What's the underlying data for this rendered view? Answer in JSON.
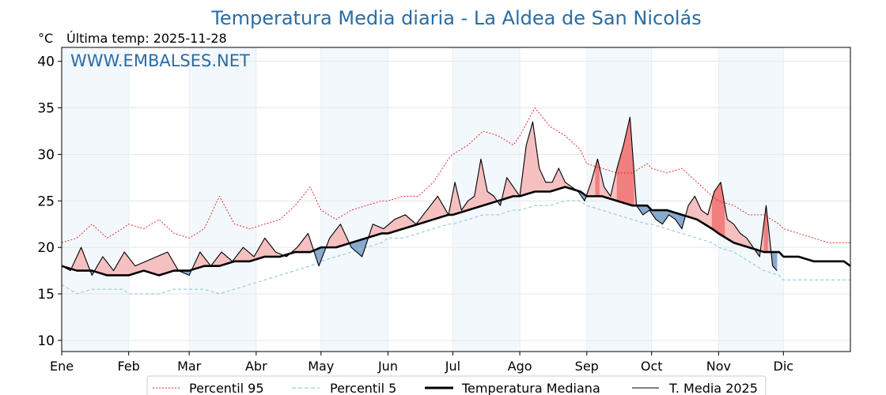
{
  "chart_data": {
    "type": "line",
    "title": "Temperatura Media diaria - La Aldea de San Nicolás",
    "ylabel": "°C",
    "subtitle": "Última temp: 2025-11-28",
    "watermark": "WWW.EMBALSES.NET",
    "ylim": [
      8.8,
      41.5
    ],
    "yticks": [
      10,
      15,
      20,
      25,
      30,
      35,
      40
    ],
    "xlim": [
      1,
      366
    ],
    "months": [
      "Ene",
      "Feb",
      "Mar",
      "Abr",
      "May",
      "Jun",
      "Jul",
      "Ago",
      "Sep",
      "Oct",
      "Nov",
      "Dic"
    ],
    "month_start_days": [
      1,
      32,
      60,
      91,
      121,
      152,
      182,
      213,
      244,
      274,
      305,
      335
    ],
    "shaded_months": [
      0,
      2,
      4,
      6,
      8,
      10
    ],
    "grid": true,
    "legend_position": "bottom-center",
    "series": [
      {
        "name": "Percentil 95",
        "color": "#e41a1c",
        "style": "dotted",
        "x": [
          1,
          8,
          15,
          22,
          29,
          32,
          39,
          46,
          53,
          60,
          67,
          74,
          81,
          88,
          95,
          102,
          109,
          116,
          121,
          128,
          135,
          142,
          149,
          152,
          159,
          166,
          173,
          180,
          182,
          189,
          196,
          203,
          210,
          213,
          220,
          227,
          234,
          241,
          244,
          251,
          258,
          265,
          272,
          274,
          281,
          288,
          295,
          302,
          305,
          312,
          319,
          326,
          333,
          335,
          342,
          349,
          356,
          363,
          366
        ],
        "values": [
          20.5,
          21.0,
          22.5,
          21.0,
          22.0,
          22.5,
          22.0,
          23.0,
          21.5,
          21.0,
          22.0,
          25.5,
          22.5,
          22.0,
          22.5,
          23.0,
          24.5,
          26.5,
          24.0,
          23.0,
          24.0,
          24.5,
          25.0,
          25.0,
          25.5,
          25.5,
          27.0,
          29.5,
          30.0,
          31.0,
          32.5,
          32.0,
          31.0,
          32.0,
          35.0,
          33.0,
          32.0,
          30.5,
          29.0,
          28.5,
          28.0,
          28.0,
          29.0,
          28.5,
          28.0,
          28.5,
          27.0,
          25.5,
          25.0,
          24.5,
          23.5,
          23.5,
          22.5,
          22.0,
          21.5,
          21.0,
          20.5,
          20.5,
          20.5
        ]
      },
      {
        "name": "Percentil 5",
        "color": "#9ecae1",
        "style": "dashed",
        "x": [
          1,
          8,
          15,
          22,
          29,
          32,
          39,
          46,
          53,
          60,
          67,
          74,
          81,
          88,
          95,
          102,
          109,
          116,
          121,
          128,
          135,
          142,
          149,
          152,
          159,
          166,
          173,
          180,
          182,
          189,
          196,
          203,
          210,
          213,
          220,
          227,
          234,
          241,
          244,
          251,
          258,
          265,
          272,
          274,
          281,
          288,
          295,
          302,
          305,
          312,
          319,
          326,
          333,
          335,
          342,
          349,
          356,
          363,
          366
        ],
        "values": [
          16.0,
          15.0,
          15.5,
          15.5,
          15.5,
          15.0,
          15.0,
          15.0,
          15.5,
          15.5,
          15.5,
          15.0,
          15.5,
          16.0,
          16.5,
          17.0,
          17.5,
          18.0,
          18.5,
          19.0,
          19.5,
          20.0,
          20.5,
          21.0,
          21.0,
          21.5,
          22.0,
          22.5,
          22.5,
          23.0,
          23.5,
          23.5,
          24.0,
          24.0,
          24.5,
          24.5,
          25.0,
          25.0,
          24.5,
          24.0,
          23.5,
          23.0,
          22.5,
          22.5,
          22.0,
          21.5,
          21.0,
          20.5,
          20.0,
          19.5,
          18.5,
          17.5,
          17.0,
          16.5,
          16.5,
          16.5,
          16.5,
          16.5,
          16.5
        ]
      },
      {
        "name": "Temperatura Mediana",
        "color": "#000000",
        "style": "solid-thick",
        "x": [
          1,
          8,
          15,
          22,
          29,
          32,
          39,
          46,
          53,
          60,
          67,
          74,
          81,
          88,
          95,
          102,
          109,
          116,
          121,
          128,
          135,
          142,
          149,
          152,
          159,
          166,
          173,
          180,
          182,
          189,
          196,
          203,
          210,
          213,
          220,
          227,
          234,
          241,
          244,
          251,
          258,
          265,
          272,
          274,
          281,
          288,
          295,
          302,
          305,
          312,
          319,
          326,
          333,
          335,
          342,
          349,
          356,
          363,
          366
        ],
        "values": [
          18.0,
          17.5,
          17.5,
          17.0,
          17.0,
          17.0,
          17.5,
          17.0,
          17.5,
          17.5,
          18.0,
          18.0,
          18.5,
          18.5,
          19.0,
          19.0,
          19.5,
          19.5,
          20.0,
          20.0,
          20.5,
          21.0,
          21.5,
          21.5,
          22.0,
          22.5,
          23.0,
          23.5,
          23.5,
          24.0,
          24.5,
          25.0,
          25.5,
          25.5,
          26.0,
          26.0,
          26.5,
          26.0,
          25.5,
          25.5,
          25.0,
          24.5,
          24.5,
          24.0,
          24.0,
          23.5,
          23.0,
          22.0,
          21.5,
          20.5,
          20.0,
          19.5,
          19.5,
          19.0,
          19.0,
          18.5,
          18.5,
          18.5,
          18.0
        ]
      },
      {
        "name": "T. Media 2025",
        "color": "#000000",
        "style": "solid-thin",
        "x": [
          1,
          5,
          10,
          15,
          20,
          25,
          30,
          35,
          40,
          45,
          50,
          55,
          60,
          65,
          70,
          75,
          80,
          85,
          90,
          95,
          100,
          105,
          110,
          115,
          120,
          125,
          130,
          135,
          140,
          145,
          150,
          155,
          160,
          165,
          170,
          175,
          180,
          183,
          186,
          189,
          192,
          195,
          198,
          201,
          204,
          207,
          210,
          213,
          216,
          219,
          222,
          225,
          228,
          231,
          234,
          237,
          240,
          243,
          246,
          249,
          252,
          255,
          258,
          261,
          264,
          267,
          270,
          273,
          276,
          279,
          282,
          285,
          288,
          291,
          294,
          297,
          300,
          303,
          306,
          309,
          312,
          315,
          318,
          321,
          324,
          327,
          330,
          332
        ],
        "values": [
          18.0,
          17.5,
          20.0,
          17.0,
          19.0,
          17.5,
          19.5,
          18.0,
          18.5,
          19.0,
          19.5,
          17.5,
          17.0,
          19.5,
          18.0,
          19.5,
          18.5,
          20.0,
          19.0,
          21.0,
          19.5,
          19.0,
          20.0,
          21.5,
          18.0,
          21.0,
          22.5,
          20.0,
          19.0,
          22.5,
          22.0,
          23.0,
          23.5,
          22.5,
          24.0,
          25.5,
          23.5,
          27.0,
          24.0,
          25.0,
          25.5,
          29.5,
          26.0,
          25.5,
          24.5,
          27.5,
          26.5,
          25.5,
          31.0,
          33.5,
          28.5,
          27.0,
          27.0,
          28.5,
          27.0,
          26.5,
          26.0,
          25.0,
          27.0,
          29.5,
          26.5,
          25.5,
          28.5,
          31.0,
          34.0,
          24.5,
          23.5,
          24.0,
          23.0,
          22.5,
          23.5,
          23.0,
          22.0,
          24.5,
          25.5,
          24.0,
          23.5,
          26.0,
          27.0,
          23.0,
          22.5,
          21.5,
          21.0,
          20.0,
          19.0,
          24.5,
          18.0,
          17.5
        ]
      }
    ]
  },
  "legend": [
    "Percentil 95",
    "Percentil 5",
    "Temperatura Mediana",
    "T. Media 2025"
  ]
}
